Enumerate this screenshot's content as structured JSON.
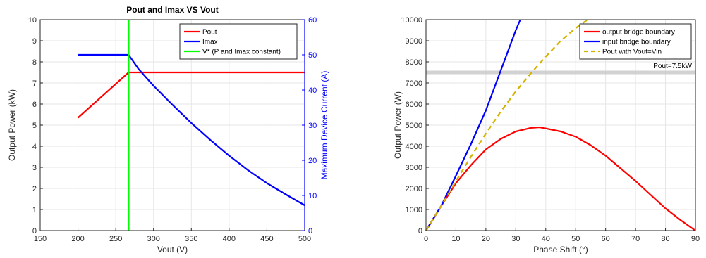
{
  "chart_data": [
    {
      "type": "line",
      "title": "Pout and Imax VS Vout",
      "xlabel": "Vout (V)",
      "ylabel": "Output Power (kW)",
      "ylabel_right": "Maximum Device Current (A)",
      "xlim": [
        150,
        500
      ],
      "ylim": [
        0,
        10
      ],
      "ylim_right": [
        0,
        60
      ],
      "grid": true,
      "legend_position": "top-right",
      "x_ticks": [
        "150",
        "200",
        "250",
        "300",
        "350",
        "400",
        "450",
        "500"
      ],
      "y_ticks": [
        "0",
        "1",
        "2",
        "3",
        "4",
        "5",
        "6",
        "7",
        "8",
        "9",
        "10"
      ],
      "y_ticks_right": [
        "0",
        "10",
        "20",
        "30",
        "40",
        "50",
        "60"
      ],
      "colors": {
        "right_axis": "#0000ff",
        "grid": "#e6e6e6"
      },
      "series": [
        {
          "name": "Pout",
          "color": "#ff0000",
          "axis": "left",
          "style": "solid",
          "x": [
            200,
            267,
            300,
            350,
            400,
            450,
            500
          ],
          "values": [
            5.35,
            7.5,
            7.5,
            7.5,
            7.5,
            7.5,
            7.5
          ]
        },
        {
          "name": "Imax",
          "color": "#0000ff",
          "axis": "right",
          "style": "solid",
          "x": [
            200,
            267,
            280,
            300,
            325,
            350,
            375,
            400,
            425,
            450,
            475,
            500
          ],
          "values": [
            50,
            50,
            46,
            41.2,
            35.8,
            30.6,
            25.8,
            21.3,
            17.2,
            13.5,
            10.3,
            7.2
          ]
        },
        {
          "name": "V* (P and Imax constant)",
          "color": "#00ff00",
          "axis": "left",
          "style": "solid",
          "x": [
            267,
            267
          ],
          "values": [
            0,
            10
          ]
        }
      ]
    },
    {
      "type": "line",
      "title": "",
      "xlabel": "Phase Shift (°)",
      "ylabel": "Output Power (W)",
      "xlim": [
        0,
        90
      ],
      "ylim": [
        0,
        10000
      ],
      "grid": true,
      "legend_position": "top-right",
      "x_ticks": [
        "0",
        "10",
        "20",
        "30",
        "40",
        "50",
        "60",
        "70",
        "80",
        "90"
      ],
      "y_ticks": [
        "0",
        "1000",
        "2000",
        "3000",
        "4000",
        "5000",
        "6000",
        "7000",
        "8000",
        "9000",
        "10000"
      ],
      "annotation": {
        "text": "Pout=7.5kW",
        "value": 7500,
        "color": "#bfbfbf"
      },
      "series": [
        {
          "name": "output bridge boundary",
          "color": "#ff0000",
          "style": "solid",
          "x": [
            0,
            5,
            10,
            15,
            20,
            25,
            30,
            35,
            38,
            45,
            50,
            55,
            60,
            65,
            70,
            75,
            80,
            85,
            90
          ],
          "values": [
            0,
            1150,
            2250,
            3100,
            3850,
            4350,
            4700,
            4870,
            4900,
            4700,
            4450,
            4050,
            3550,
            2950,
            2350,
            1700,
            1050,
            500,
            0
          ]
        },
        {
          "name": "input bridge boundary",
          "color": "#0000ff",
          "style": "solid",
          "x": [
            0,
            5,
            10,
            15,
            20,
            25,
            30,
            31.5
          ],
          "values": [
            0,
            1150,
            2600,
            4100,
            5700,
            7600,
            9500,
            10000
          ]
        },
        {
          "name": "Pout with Vout=Vin",
          "color": "#d4b200",
          "style": "dashed",
          "x": [
            0,
            5,
            10,
            15,
            20,
            25,
            30,
            35,
            40,
            45,
            50,
            54
          ],
          "values": [
            0,
            1150,
            2350,
            3500,
            4600,
            5650,
            6600,
            7450,
            8250,
            9000,
            9600,
            10000
          ]
        }
      ]
    }
  ]
}
